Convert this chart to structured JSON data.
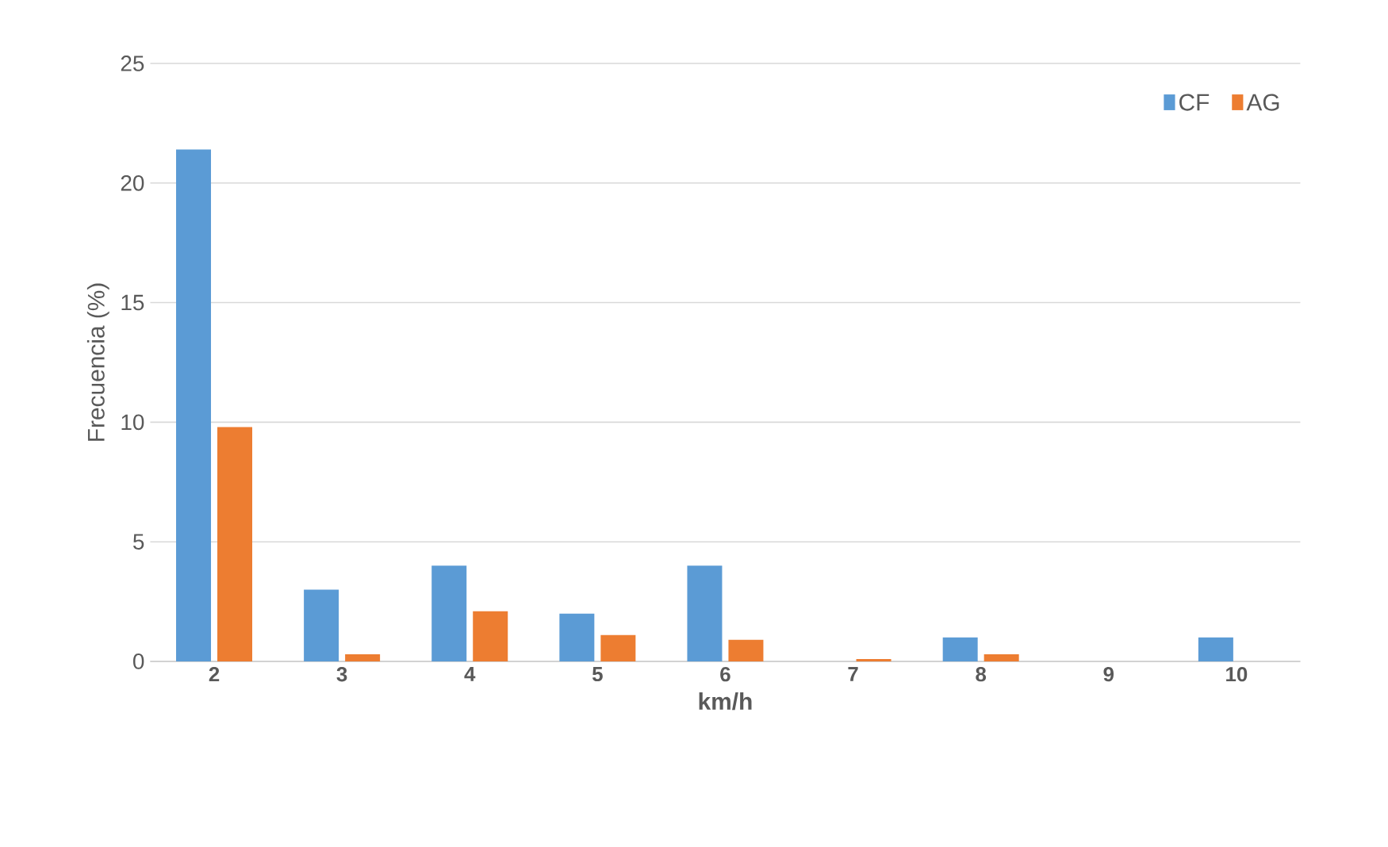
{
  "chart_data": {
    "type": "bar",
    "xlabel": "km/h",
    "ylabel": "Frecuencia (%)",
    "categories": [
      "2",
      "3",
      "4",
      "5",
      "6",
      "7",
      "8",
      "9",
      "10"
    ],
    "series": [
      {
        "name": "CF",
        "color": "#5b9bd5",
        "values": [
          21.4,
          3,
          4,
          2,
          4,
          0,
          1,
          0,
          1
        ]
      },
      {
        "name": "AG",
        "color": "#ed7d31",
        "values": [
          9.8,
          0.3,
          2.1,
          1.1,
          0.9,
          0.1,
          0.3,
          0,
          0
        ]
      }
    ],
    "ylim": [
      0,
      25
    ],
    "yticks": [
      0,
      5,
      10,
      15,
      20,
      25
    ],
    "grid": "y",
    "legend": "top right"
  }
}
